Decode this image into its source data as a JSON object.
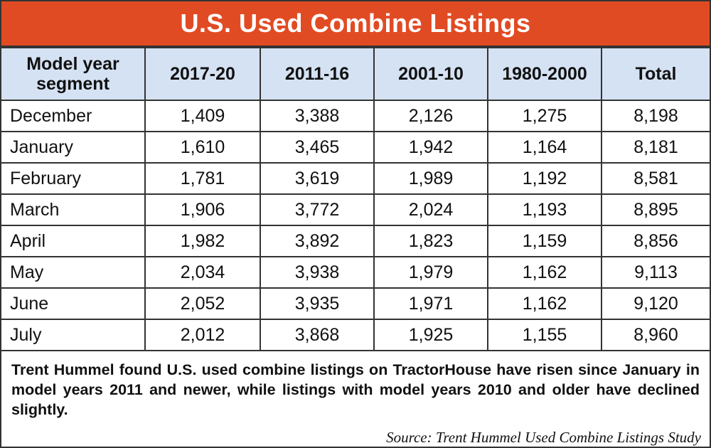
{
  "title": "U.S. Used Combine Listings",
  "colors": {
    "title_bar": "#e14b24",
    "header_bg": "#d5e2f3",
    "border": "#333333"
  },
  "chart_data": {
    "type": "table",
    "title": "U.S. Used Combine Listings",
    "columns": [
      "Model year segment",
      "2017-20",
      "2011-16",
      "2001-10",
      "1980-2000",
      "Total"
    ],
    "rows": [
      [
        "December",
        "1,409",
        "3,388",
        "2,126",
        "1,275",
        "8,198"
      ],
      [
        "January",
        "1,610",
        "3,465",
        "1,942",
        "1,164",
        "8,181"
      ],
      [
        "February",
        "1,781",
        "3,619",
        "1,989",
        "1,192",
        "8,581"
      ],
      [
        "March",
        "1,906",
        "3,772",
        "2,024",
        "1,193",
        "8,895"
      ],
      [
        "April",
        "1,982",
        "3,892",
        "1,823",
        "1,159",
        "8,856"
      ],
      [
        "May",
        "2,034",
        "3,938",
        "1,979",
        "1,162",
        "9,113"
      ],
      [
        "June",
        "2,052",
        "3,935",
        "1,971",
        "1,162",
        "9,120"
      ],
      [
        "July",
        "2,012",
        "3,868",
        "1,925",
        "1,155",
        "8,960"
      ]
    ]
  },
  "note": "Trent Hummel found U.S. used combine listings on TractorHouse have risen since January in model years 2011 and newer, while listings with model years 2010 and older have declined slightly.",
  "source": "Source: Trent Hummel Used Combine Listings Study"
}
